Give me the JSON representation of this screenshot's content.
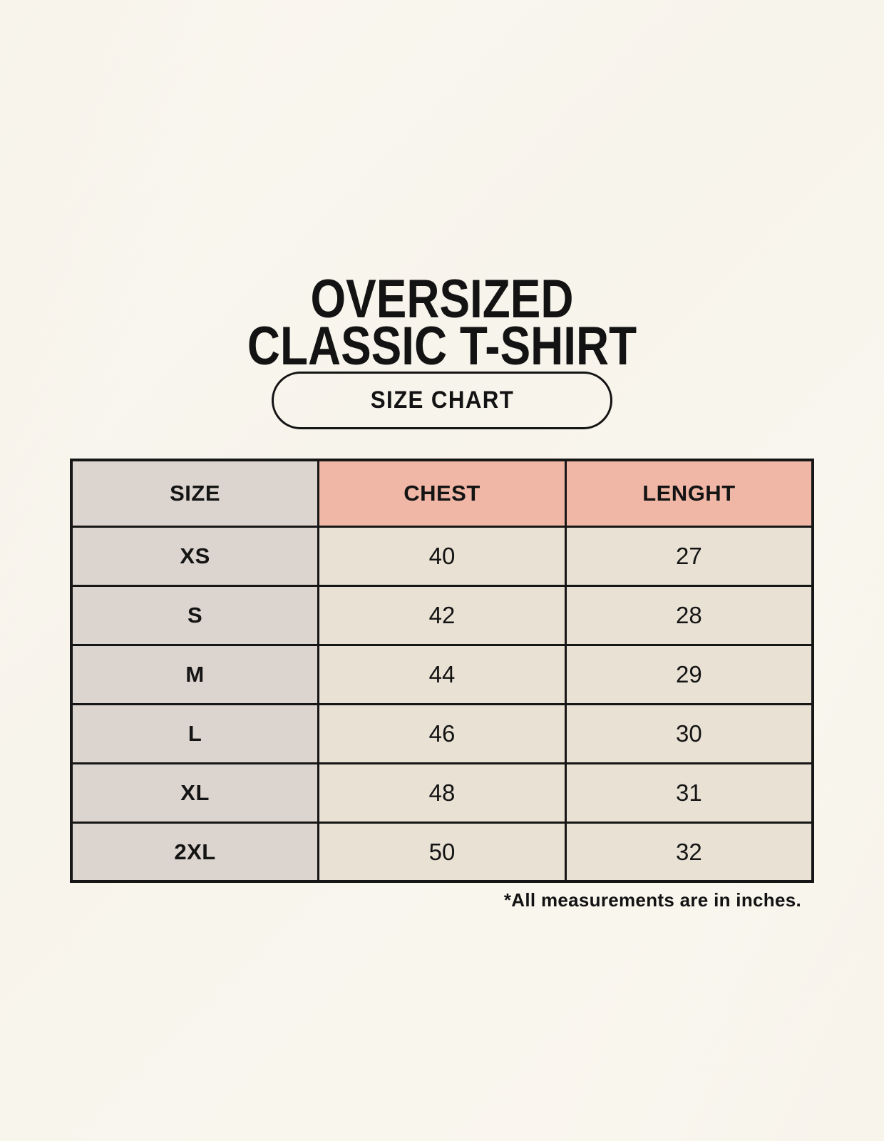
{
  "page": {
    "title_lines": [
      "OVERSIZED",
      "CLASSIC T-SHIRT"
    ],
    "badge_label": "SIZE CHART",
    "footnote": "*All measurements are in inches."
  },
  "colors": {
    "background": "#f8f5ee",
    "header_accent": "#f0b7a6",
    "size_column_bg": "#dcd4ce",
    "value_cell_bg": "#e9e1d4",
    "border": "#161616",
    "text": "#141414"
  },
  "chart_data": {
    "type": "table",
    "title": "OVERSIZED CLASSIC T-SHIRT",
    "subtitle": "SIZE CHART",
    "columns": [
      "SIZE",
      "CHEST",
      "LENGHT"
    ],
    "rows": [
      {
        "size": "XS",
        "chest": "40",
        "lenght": "27"
      },
      {
        "size": "S",
        "chest": "42",
        "lenght": "28"
      },
      {
        "size": "M",
        "chest": "44",
        "lenght": "29"
      },
      {
        "size": "L",
        "chest": "46",
        "lenght": "30"
      },
      {
        "size": "XL",
        "chest": "48",
        "lenght": "31"
      },
      {
        "size": "2XL",
        "chest": "50",
        "lenght": "32"
      }
    ],
    "units_note": "*All measurements are in inches."
  }
}
